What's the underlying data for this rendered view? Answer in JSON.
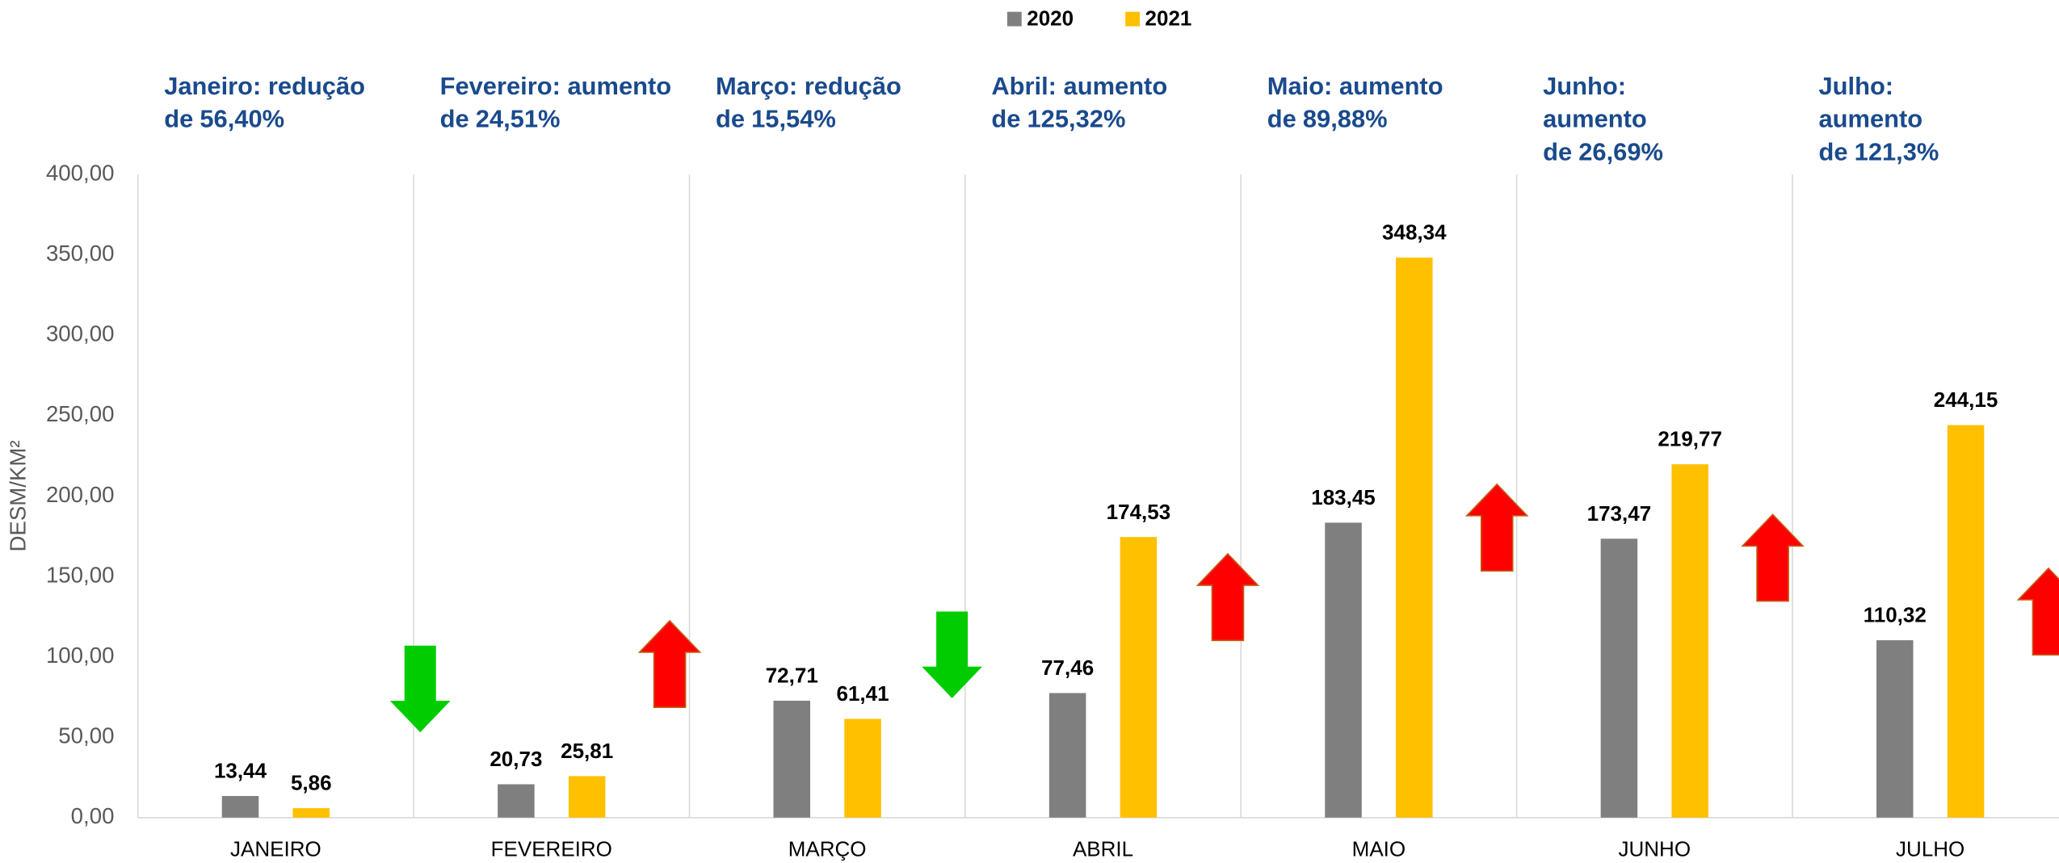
{
  "chart_data": {
    "type": "bar",
    "y_label": "DESM/KM²",
    "categories": [
      "JANEIRO",
      "FEVEREIRO",
      "MARÇO",
      "ABRIL",
      "MAIO",
      "JUNHO",
      "JULHO"
    ],
    "series": [
      {
        "name": "2020",
        "color": "#7f7f7f",
        "values": [
          13.44,
          20.73,
          72.71,
          77.46,
          183.45,
          173.47,
          110.32
        ],
        "value_labels": [
          "13,44",
          "20,73",
          "72,71",
          "77,46",
          "183,45",
          "173,47",
          "110,32"
        ]
      },
      {
        "name": "2021",
        "color": "#ffc000",
        "values": [
          5.86,
          25.81,
          61.41,
          174.53,
          348.34,
          219.77,
          244.15
        ],
        "value_labels": [
          "5,86",
          "25,81",
          "61,41",
          "174,53",
          "348,34",
          "219,77",
          "244,15"
        ]
      }
    ],
    "ylim": [
      0,
      400
    ],
    "yticks": [
      {
        "value": 0,
        "label": "0,00"
      },
      {
        "value": 50,
        "label": "50,00"
      },
      {
        "value": 100,
        "label": "100,00"
      },
      {
        "value": 150,
        "label": "150,00"
      },
      {
        "value": 200,
        "label": "200,00"
      },
      {
        "value": 250,
        "label": "250,00"
      },
      {
        "value": 300,
        "label": "300,00"
      },
      {
        "value": 350,
        "label": "350,00"
      },
      {
        "value": 400,
        "label": "400,00"
      }
    ],
    "legend": "top",
    "annotations": [
      {
        "lines": [
          "Janeiro: redução",
          "de"
        ],
        "percent": "56,40%",
        "percent_color": "#00b050",
        "arrow": "down",
        "arrow_color": "#00cc00"
      },
      {
        "lines": [
          "Fevereiro: aumento",
          "de"
        ],
        "percent": "24,51%",
        "percent_color": "#c00000",
        "arrow": "up",
        "arrow_color": "#ff0000"
      },
      {
        "lines": [
          "Março: redução",
          "de"
        ],
        "percent": "15,54%",
        "percent_color": "#00b050",
        "arrow": "down",
        "arrow_color": "#00cc00"
      },
      {
        "lines": [
          "Abril: aumento",
          "de"
        ],
        "percent": "125,32%",
        "percent_color": "#c00000",
        "arrow": "up",
        "arrow_color": "#ff0000"
      },
      {
        "lines": [
          "Maio: aumento",
          "de"
        ],
        "percent": "89,88%",
        "percent_color": "#c00000",
        "arrow": "up",
        "arrow_color": "#ff0000"
      },
      {
        "lines": [
          "Junho:",
          "aumento",
          "de"
        ],
        "percent": "26,69%",
        "percent_color": "#c00000",
        "arrow": "up",
        "arrow_color": "#ff0000"
      },
      {
        "lines": [
          "Julho:",
          "aumento",
          "de"
        ],
        "percent": "121,3%",
        "percent_color": "#ff0000",
        "arrow": "up",
        "arrow_color": "#ff0000"
      }
    ]
  }
}
